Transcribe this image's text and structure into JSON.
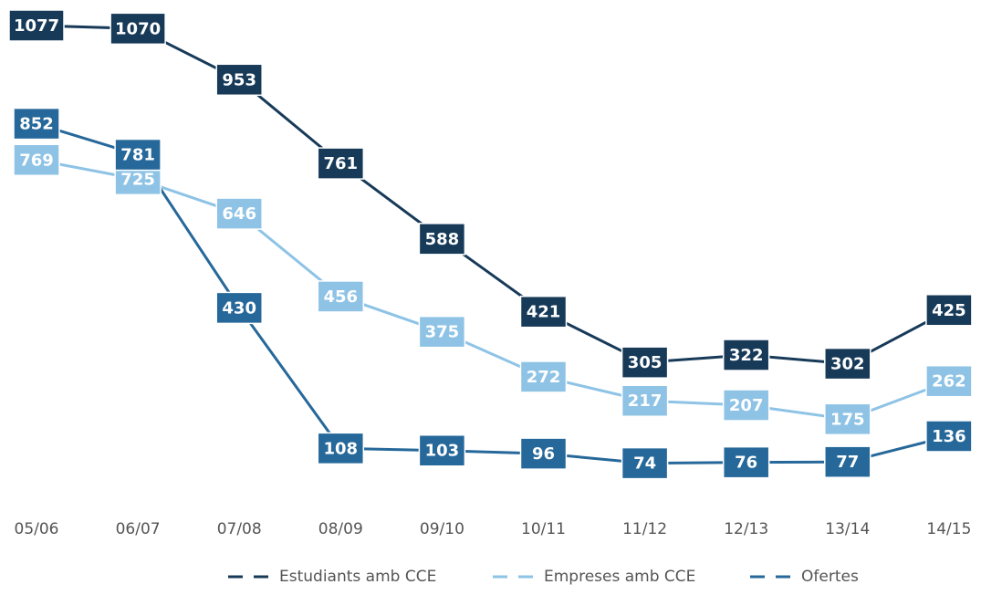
{
  "chart_data": {
    "type": "line",
    "categories": [
      "05/06",
      "06/07",
      "07/08",
      "08/09",
      "09/10",
      "10/11",
      "11/12",
      "12/13",
      "13/14",
      "14/15"
    ],
    "series": [
      {
        "name": "Estudiants amb CCE",
        "color": "#173a58",
        "values": [
          1077,
          1070,
          953,
          761,
          588,
          421,
          305,
          322,
          302,
          425
        ]
      },
      {
        "name": "Empreses amb CCE",
        "color": "#8ec3e6",
        "values": [
          769,
          725,
          646,
          456,
          375,
          272,
          217,
          207,
          175,
          262
        ]
      },
      {
        "name": "Ofertes",
        "color": "#26689a",
        "values": [
          852,
          781,
          430,
          108,
          103,
          96,
          74,
          76,
          77,
          136
        ]
      }
    ],
    "ylim": [
      0,
      1100
    ],
    "legend": "bottom"
  }
}
